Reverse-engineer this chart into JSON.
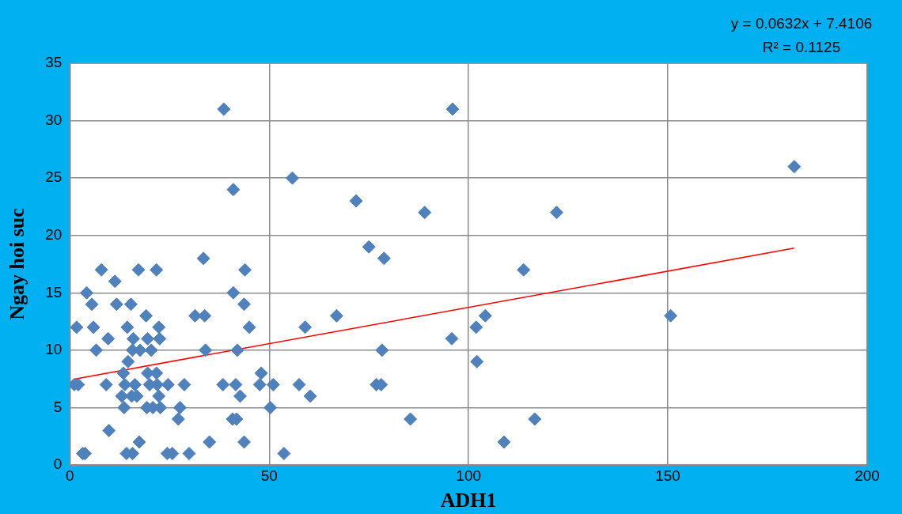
{
  "chart_data": {
    "type": "scatter",
    "xlabel": "ADH1",
    "ylabel": "Ngay hoi suc",
    "annotations": [
      "y = 0.0632x + 7.4106",
      "R² = 0.1125"
    ],
    "xlim": [
      0,
      200
    ],
    "xticks": [
      0,
      50,
      100,
      150,
      200
    ],
    "ylim": [
      0,
      35
    ],
    "yticks": [
      0,
      5,
      10,
      15,
      20,
      25,
      30,
      35
    ],
    "grid": true,
    "legend": false,
    "marker": "diamond",
    "series": [
      {
        "type": "scatter",
        "color": "#4f81bd",
        "x": [
          1.1,
          2.1,
          1.7,
          3.2,
          3.8,
          4.2,
          5.5,
          5.9,
          6.6,
          7.9,
          9.1,
          9.6,
          9.8,
          11.3,
          11.7,
          13,
          13.4,
          13.6,
          13.8,
          14.2,
          14.4,
          14.6,
          15.3,
          15.5,
          15.7,
          15.7,
          15.9,
          16.3,
          16.8,
          17.2,
          17.4,
          17.6,
          19.1,
          19.3,
          19.5,
          19.5,
          20,
          20.4,
          20.8,
          21.7,
          21.7,
          21.9,
          22.3,
          22.3,
          22.5,
          22.7,
          24.4,
          24.6,
          25.7,
          27.2,
          27.6,
          28.7,
          29.9,
          31.4,
          33.8,
          33.5,
          34,
          35,
          38.4,
          38.6,
          41,
          41,
          40.8,
          41.6,
          41.8,
          42,
          42.7,
          43.7,
          43.9,
          43.7,
          45,
          47.6,
          48,
          50.3,
          51,
          53.7,
          55.8,
          57.5,
          59,
          60.3,
          66.9,
          71.8,
          75,
          76.9,
          78.1,
          78.3,
          78.8,
          85.4,
          89,
          96,
          95.8,
          101.9,
          102.1,
          104.2,
          108.9,
          113.8,
          116.6,
          122.1,
          150.7,
          181.7
        ],
        "values": [
          7,
          7,
          12,
          1,
          1,
          15,
          14,
          12,
          10,
          17,
          7,
          11,
          3,
          16,
          14,
          6,
          8,
          5,
          7,
          1,
          12,
          9,
          14,
          6,
          10,
          1,
          11,
          7,
          6,
          17,
          2,
          10,
          13,
          5,
          11,
          8,
          7,
          10,
          5,
          17,
          8,
          7,
          6,
          12,
          11,
          5,
          1,
          7,
          1,
          4,
          5,
          7,
          1,
          13,
          13,
          18,
          10,
          2,
          7,
          31,
          15,
          24,
          4,
          7,
          4,
          10,
          6,
          14,
          17,
          2,
          12,
          7,
          8,
          5,
          7,
          1,
          25,
          7,
          12,
          6,
          13,
          23,
          19,
          7,
          7,
          10,
          18,
          4,
          22,
          31,
          11,
          12,
          9,
          13,
          2,
          17,
          4,
          22,
          13,
          26
        ]
      },
      {
        "type": "line",
        "color": "#ff0000",
        "marker": "none",
        "x": [
          1.1,
          181.7
        ],
        "values": [
          7.48,
          18.89
        ]
      }
    ]
  }
}
